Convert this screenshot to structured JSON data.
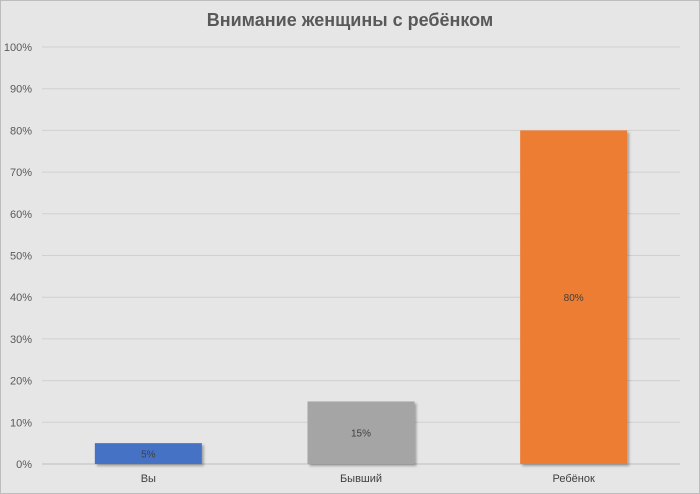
{
  "chart_data": {
    "type": "bar",
    "title": "Внимание женщины с ребёнком",
    "xlabel": "",
    "ylabel": "",
    "categories": [
      "Вы",
      "Бывший",
      "Ребёнок"
    ],
    "values": [
      5,
      15,
      80
    ],
    "data_labels": [
      "5%",
      "15%",
      "80%"
    ],
    "bar_colors": [
      "#4472c4",
      "#a5a5a5",
      "#ed7d31"
    ],
    "ylim": [
      0,
      100
    ],
    "y_ticks": [
      0,
      10,
      20,
      30,
      40,
      50,
      60,
      70,
      80,
      90,
      100
    ],
    "y_tick_labels": [
      "0%",
      "10%",
      "20%",
      "30%",
      "40%",
      "50%",
      "60%",
      "70%",
      "80%",
      "90%",
      "100%"
    ],
    "grid": true,
    "legend": "none"
  }
}
